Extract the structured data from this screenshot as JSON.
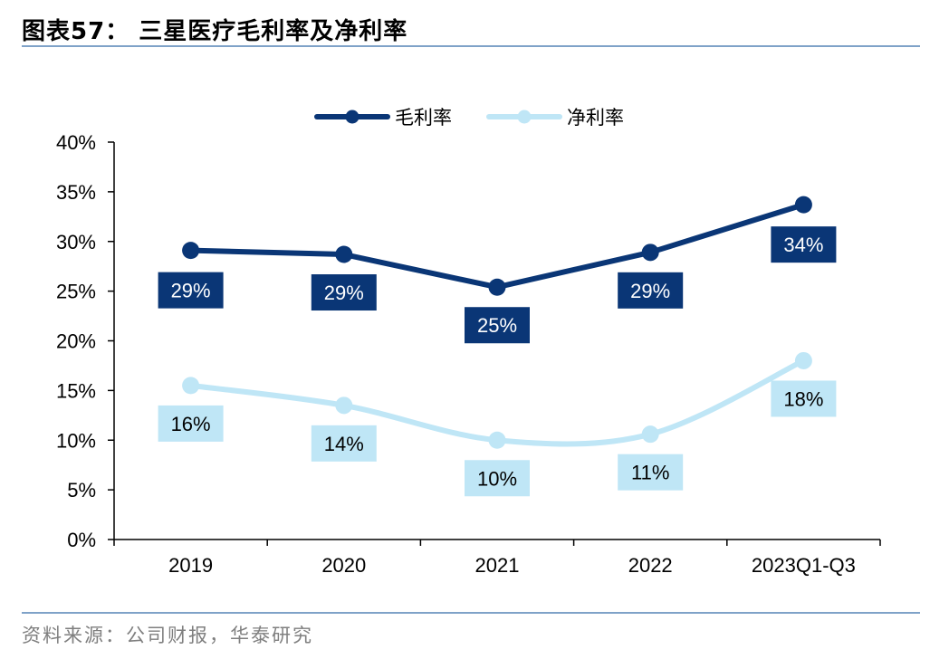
{
  "header": {
    "title": "图表57： 三星医疗毛利率及净利率"
  },
  "footer": {
    "source": "资料来源：公司财报，华泰研究"
  },
  "chart_data": {
    "type": "line",
    "categories": [
      "2019",
      "2020",
      "2021",
      "2022",
      "2023Q1-Q3"
    ],
    "series": [
      {
        "name": "毛利率",
        "color": "#0a3676",
        "values": [
          29.1,
          28.7,
          25.4,
          28.9,
          33.7
        ],
        "labels": [
          "29%",
          "29%",
          "25%",
          "29%",
          "34%"
        ]
      },
      {
        "name": "净利率",
        "color": "#bfe6f6",
        "values": [
          15.5,
          13.5,
          10.0,
          10.6,
          18.0
        ],
        "labels": [
          "16%",
          "14%",
          "10%",
          "11%",
          "18%"
        ]
      }
    ],
    "ylim": [
      0,
      40
    ],
    "yticks": [
      "0%",
      "5%",
      "10%",
      "15%",
      "20%",
      "25%",
      "30%",
      "35%",
      "40%"
    ],
    "xlabel": "",
    "ylabel": "",
    "grid": false,
    "legend": "top-center"
  }
}
